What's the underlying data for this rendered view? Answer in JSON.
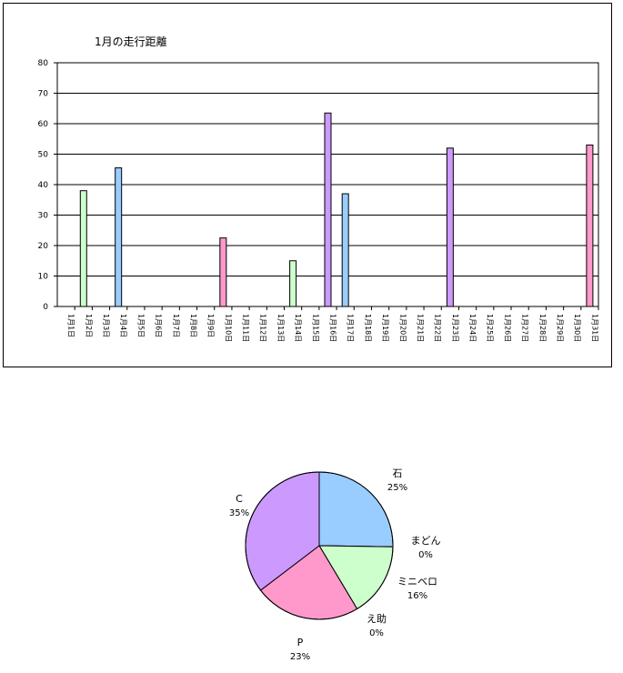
{
  "chart_data": [
    {
      "type": "bar",
      "title": "1月の走行距離",
      "xlabel": "",
      "ylabel": "",
      "ylim": [
        0,
        80
      ],
      "yticks": [
        "0",
        "10",
        "20",
        "30",
        "40",
        "50",
        "60",
        "70",
        "80"
      ],
      "categories": [
        "1月1日",
        "1月2日",
        "1月3日",
        "1月4日",
        "1月5日",
        "1月6日",
        "1月7日",
        "1月8日",
        "1月9日",
        "1月10日",
        "1月11日",
        "1月12日",
        "1月13日",
        "1月14日",
        "1月15日",
        "1月16日",
        "1月17日",
        "1月18日",
        "1月19日",
        "1月20日",
        "1月21日",
        "1月22日",
        "1月23日",
        "1月24日",
        "1月25日",
        "1月26日",
        "1月27日",
        "1月28日",
        "1月29日",
        "1月30日",
        "1月31日"
      ],
      "values": [
        0,
        38,
        0,
        45.5,
        0,
        0,
        0,
        0,
        0,
        22.5,
        0,
        0,
        0,
        15,
        0,
        63.5,
        37,
        0,
        0,
        0,
        0,
        0,
        52,
        0,
        0,
        0,
        0,
        0,
        0,
        0,
        53
      ],
      "bar_colors": [
        "#ccffcc",
        "#ccffcc",
        "#99ccff",
        "#99ccff",
        "#99ccff",
        "#99ccff",
        "#99ccff",
        "#99ccff",
        "#99ccff",
        "#ff99cc",
        "#ccffcc",
        "#ccffcc",
        "#ccffcc",
        "#ccffcc",
        "#cc99ff",
        "#cc99ff",
        "#99ccff",
        "#99ccff",
        "#99ccff",
        "#99ccff",
        "#99ccff",
        "#99ccff",
        "#cc99ff",
        "#cc99ff",
        "#cc99ff",
        "#cc99ff",
        "#cc99ff",
        "#cc99ff",
        "#cc99ff",
        "#ff99cc",
        "#ff99cc"
      ],
      "grid": true
    },
    {
      "type": "pie",
      "slices": [
        {
          "label": "石",
          "pct_label": "25%",
          "value": 25,
          "color": "#99ccff"
        },
        {
          "label": "まどん",
          "pct_label": "0%",
          "value": 0,
          "color": "#ffff99"
        },
        {
          "label": "ミニベロ",
          "pct_label": "16%",
          "value": 16,
          "color": "#ccffcc"
        },
        {
          "label": "え助",
          "pct_label": "0%",
          "value": 0,
          "color": "#ffcc99"
        },
        {
          "label": "P",
          "pct_label": "23%",
          "value": 23,
          "color": "#ff99cc"
        },
        {
          "label": "C",
          "pct_label": "35%",
          "value": 35,
          "color": "#cc99ff"
        }
      ]
    }
  ]
}
